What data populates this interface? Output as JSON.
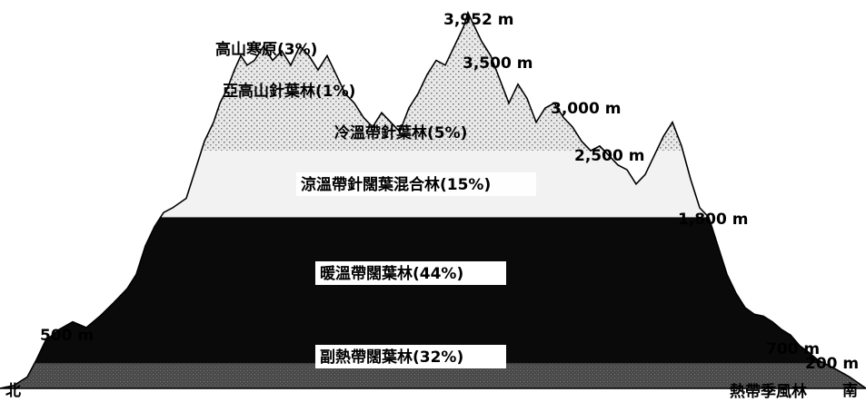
{
  "chart_data": {
    "type": "area",
    "title": "",
    "xlabel": "",
    "ylabel": "",
    "ends": {
      "left": "北",
      "right": "南"
    },
    "zones": [
      {
        "name": "高山寒原",
        "percent": "(3%)",
        "label": "高山寒原(3%)"
      },
      {
        "name": "亞高山針葉林",
        "percent": "(1%)",
        "label": "亞高山針葉林(1%)"
      },
      {
        "name": "冷溫帶針葉林",
        "percent": "(5%)",
        "label": "冷溫帶針葉林(5%)"
      },
      {
        "name": "涼溫帶針闊葉混合林",
        "percent": "(15%)",
        "label": "涼溫帶針闊葉混合林(15%)"
      },
      {
        "name": "暖溫帶闊葉林",
        "percent": "(44%)",
        "label": "暖溫帶闊葉林(44%)"
      },
      {
        "name": "副熱帶闊葉林",
        "percent": "(32%)",
        "label": "副熱帶闊葉林(32%)"
      },
      {
        "name": "熱帶季風林",
        "percent": "",
        "label": "熱帶季風林"
      }
    ],
    "elevation_labels": [
      {
        "value": 3952,
        "text": "3,952 m"
      },
      {
        "value": 3500,
        "text": "3,500 m"
      },
      {
        "value": 3000,
        "text": "3,000 m"
      },
      {
        "value": 2500,
        "text": "2,500 m"
      },
      {
        "value": 1800,
        "text": "1,800 m"
      },
      {
        "value": 700,
        "text": "700 m"
      },
      {
        "value": 500,
        "text": "500 m"
      },
      {
        "value": 200,
        "text": "200 m"
      }
    ],
    "boundaries_m": {
      "low_zone_top": 500,
      "dark_zone_top": 1800,
      "stipple_top": 2500
    },
    "profile_m": [
      [
        0,
        0
      ],
      [
        15,
        30
      ],
      [
        30,
        120
      ],
      [
        40,
        300
      ],
      [
        50,
        500
      ],
      [
        65,
        620
      ],
      [
        80,
        700
      ],
      [
        95,
        640
      ],
      [
        110,
        760
      ],
      [
        125,
        900
      ],
      [
        140,
        1050
      ],
      [
        150,
        1200
      ],
      [
        160,
        1500
      ],
      [
        170,
        1700
      ],
      [
        180,
        1850
      ],
      [
        190,
        1900
      ],
      [
        205,
        2000
      ],
      [
        215,
        2300
      ],
      [
        225,
        2600
      ],
      [
        235,
        2800
      ],
      [
        242,
        3000
      ],
      [
        250,
        3150
      ],
      [
        258,
        3350
      ],
      [
        265,
        3500
      ],
      [
        272,
        3400
      ],
      [
        280,
        3450
      ],
      [
        290,
        3600
      ],
      [
        300,
        3450
      ],
      [
        310,
        3550
      ],
      [
        320,
        3400
      ],
      [
        330,
        3600
      ],
      [
        340,
        3500
      ],
      [
        350,
        3350
      ],
      [
        360,
        3500
      ],
      [
        370,
        3300
      ],
      [
        380,
        3100
      ],
      [
        390,
        3000
      ],
      [
        400,
        2850
      ],
      [
        410,
        2750
      ],
      [
        420,
        2900
      ],
      [
        430,
        2800
      ],
      [
        440,
        2700
      ],
      [
        450,
        2950
      ],
      [
        460,
        3100
      ],
      [
        470,
        3300
      ],
      [
        480,
        3450
      ],
      [
        490,
        3400
      ],
      [
        500,
        3600
      ],
      [
        510,
        3800
      ],
      [
        515,
        3952
      ],
      [
        520,
        3850
      ],
      [
        530,
        3650
      ],
      [
        540,
        3500
      ],
      [
        550,
        3250
      ],
      [
        560,
        3000
      ],
      [
        570,
        3200
      ],
      [
        580,
        3050
      ],
      [
        590,
        2800
      ],
      [
        600,
        2950
      ],
      [
        610,
        3000
      ],
      [
        620,
        2850
      ],
      [
        630,
        2750
      ],
      [
        640,
        2600
      ],
      [
        650,
        2500
      ],
      [
        660,
        2550
      ],
      [
        670,
        2450
      ],
      [
        680,
        2350
      ],
      [
        690,
        2300
      ],
      [
        700,
        2150
      ],
      [
        710,
        2250
      ],
      [
        720,
        2450
      ],
      [
        730,
        2650
      ],
      [
        740,
        2800
      ],
      [
        750,
        2550
      ],
      [
        760,
        2200
      ],
      [
        770,
        1900
      ],
      [
        780,
        1800
      ],
      [
        790,
        1500
      ],
      [
        800,
        1200
      ],
      [
        810,
        1000
      ],
      [
        820,
        850
      ],
      [
        830,
        780
      ],
      [
        840,
        760
      ],
      [
        850,
        700
      ],
      [
        860,
        620
      ],
      [
        870,
        560
      ],
      [
        880,
        450
      ],
      [
        890,
        380
      ],
      [
        900,
        300
      ],
      [
        910,
        250
      ],
      [
        920,
        200
      ],
      [
        935,
        120
      ],
      [
        953,
        0
      ]
    ]
  }
}
